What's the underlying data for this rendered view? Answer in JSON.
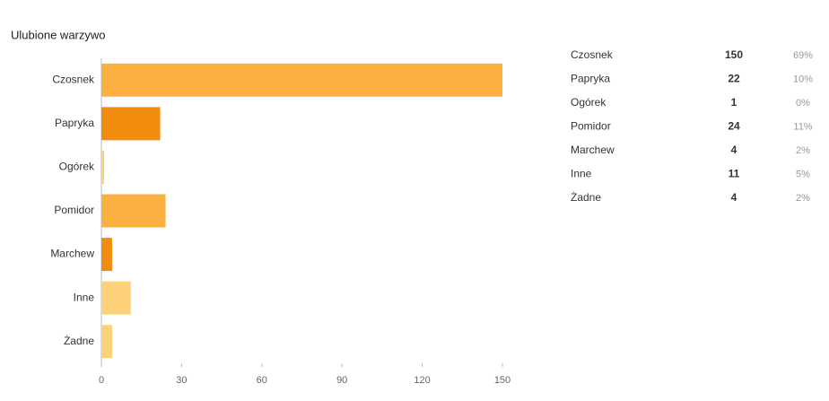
{
  "chart_data": {
    "type": "bar",
    "orientation": "horizontal",
    "title": "Ulubione warzywo",
    "categories": [
      "Czosnek",
      "Papryka",
      "Ogórek",
      "Pomidor",
      "Marchew",
      "Inne",
      "Żadne"
    ],
    "values": [
      150,
      22,
      1,
      24,
      4,
      11,
      4
    ],
    "colors": [
      "#fbb040",
      "#f28c0f",
      "#fdd17a",
      "#fbb040",
      "#f28c0f",
      "#fdd17a",
      "#fdd17a"
    ],
    "xlim": [
      0,
      150
    ],
    "xticks": [
      0,
      30,
      60,
      90,
      120,
      150
    ],
    "grid": false
  },
  "table": {
    "rows": [
      [
        "Czosnek",
        150,
        "69%"
      ],
      [
        "Papryka",
        22,
        "10%"
      ],
      [
        "Ogórek",
        1,
        "0%"
      ],
      [
        "Pomidor",
        24,
        "11%"
      ],
      [
        "Marchew",
        4,
        "2%"
      ],
      [
        "Inne",
        11,
        "5%"
      ],
      [
        "Żadne",
        4,
        "2%"
      ]
    ]
  }
}
